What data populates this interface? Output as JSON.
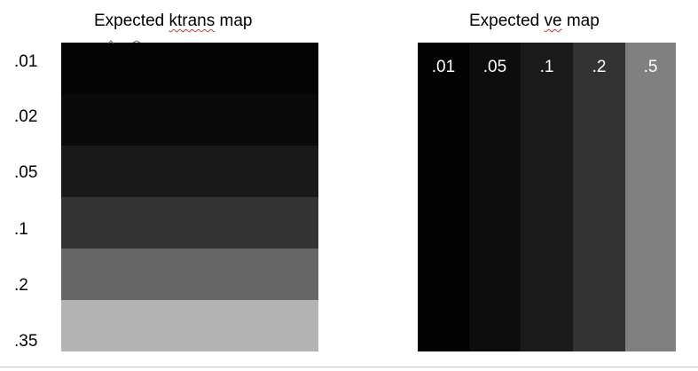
{
  "ktrans_panel": {
    "title_prefix": "Expected ",
    "title_word": "ktrans",
    "title_suffix": " map",
    "values": [
      ".01",
      ".02",
      ".05",
      ".1",
      ".2",
      ".35"
    ],
    "colors": [
      "#040404",
      "#0a0a0a",
      "#191919",
      "#333333",
      "#666666",
      "#b3b3b3"
    ]
  },
  "ve_panel": {
    "title_prefix": "Expected ",
    "title_word": "ve",
    "title_suffix": " map",
    "values": [
      ".01",
      ".05",
      ".1",
      ".2",
      ".5"
    ],
    "colors": [
      "#020202",
      "#0d0d0d",
      "#1a1a1a",
      "#333333",
      "#808080"
    ]
  }
}
